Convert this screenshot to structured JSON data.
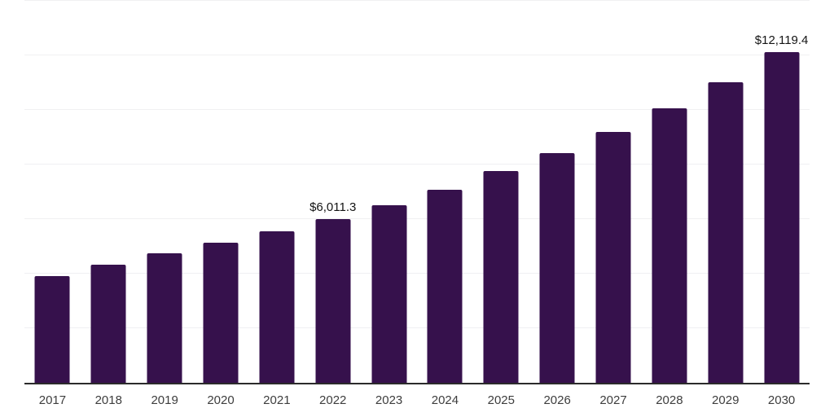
{
  "chart_data": {
    "type": "bar",
    "title": "",
    "xlabel": "",
    "ylabel": "",
    "categories": [
      "2017",
      "2018",
      "2019",
      "2020",
      "2021",
      "2022",
      "2023",
      "2024",
      "2025",
      "2026",
      "2027",
      "2028",
      "2029",
      "2030"
    ],
    "values": [
      3910,
      4330,
      4745,
      5135,
      5550,
      6011.3,
      6505,
      7075,
      7760,
      8420,
      9190,
      10055,
      11010,
      12119.4
    ],
    "data_labels": [
      null,
      null,
      null,
      null,
      null,
      "$6,011.3",
      null,
      null,
      null,
      null,
      null,
      null,
      null,
      "$12,119.4"
    ],
    "ylim": [
      0,
      14000
    ],
    "gridline_step": 2000,
    "grid": "horizontal-light",
    "legend_position": "none",
    "colors": {
      "bar": "#36114C",
      "gridline": "#F0F0F2",
      "axis_line": "#2B2B2B",
      "tick_label": "#3D3D3D",
      "data_label": "#141414",
      "background": "#FFFFFF"
    }
  }
}
